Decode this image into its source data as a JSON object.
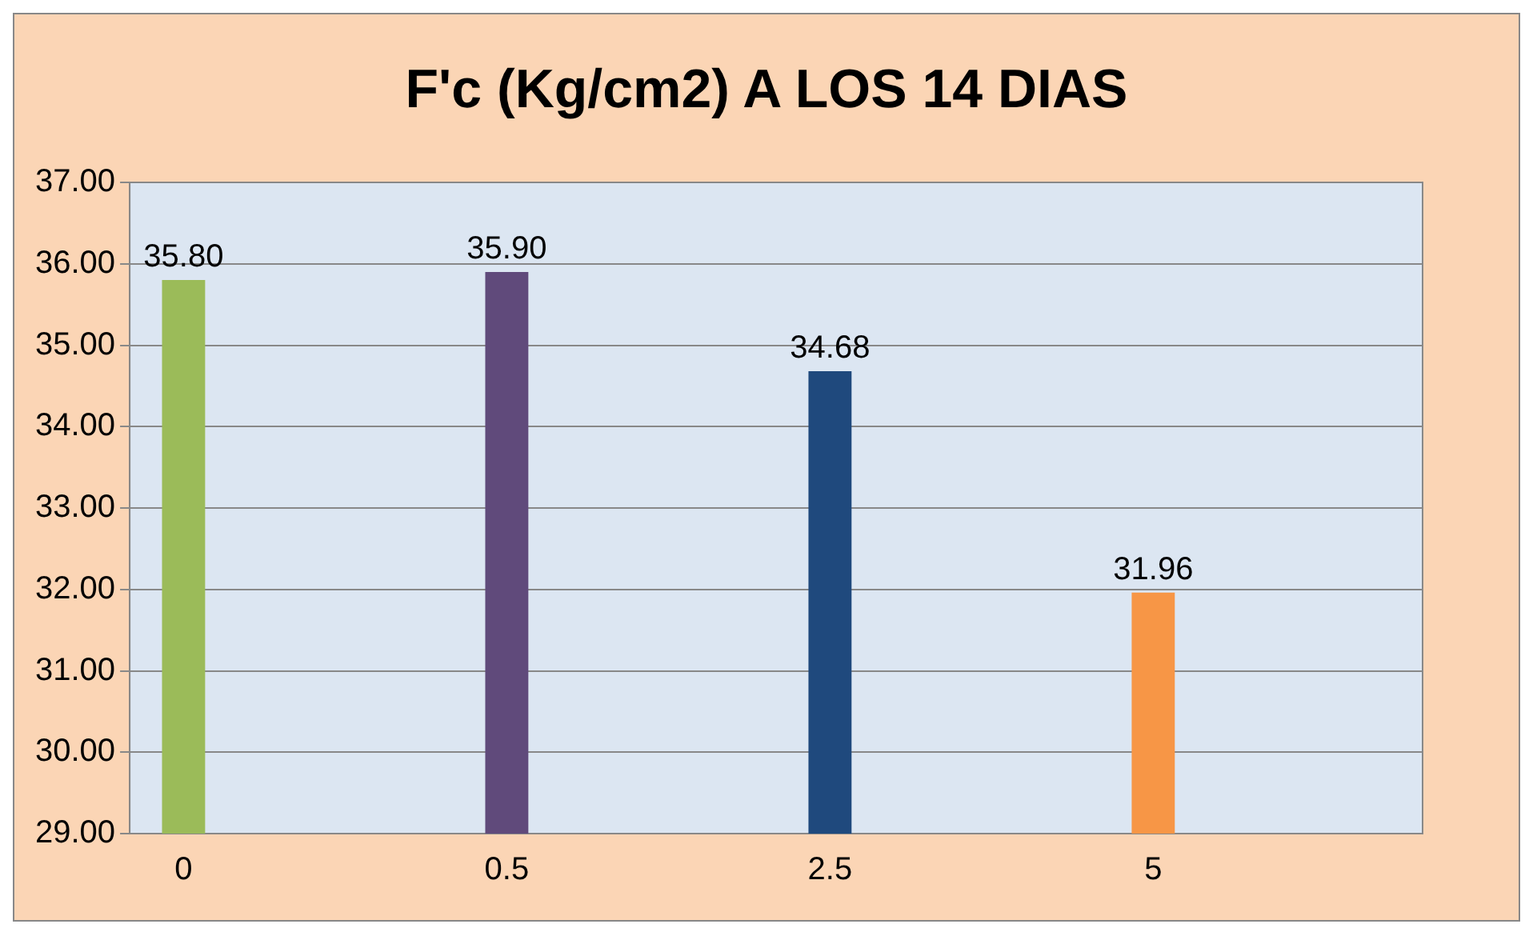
{
  "chart_data": {
    "type": "bar",
    "title": "F'c (Kg/cm2) A LOS 14 DIAS",
    "categories": [
      "0",
      null,
      null,
      "0.5",
      null,
      null,
      "2.5",
      null,
      null,
      "5",
      null,
      null
    ],
    "values": [
      35.8,
      null,
      null,
      35.9,
      null,
      null,
      34.68,
      null,
      null,
      31.96,
      null,
      null
    ],
    "colors": [
      "#9bbb59",
      null,
      null,
      "#604a7b",
      null,
      null,
      "#1f497d",
      null,
      null,
      "#f79646",
      null,
      null
    ],
    "value_labels": [
      "35.80",
      null,
      null,
      "35.90",
      null,
      null,
      "34.68",
      null,
      null,
      "31.96",
      null,
      null
    ],
    "ylim": [
      29,
      37
    ],
    "yticks": [
      {
        "value": 29,
        "label": "29.00"
      },
      {
        "value": 30,
        "label": "30.00"
      },
      {
        "value": 31,
        "label": "31.00"
      },
      {
        "value": 32,
        "label": "32.00"
      },
      {
        "value": 33,
        "label": "33.00"
      },
      {
        "value": 34,
        "label": "34.00"
      },
      {
        "value": 35,
        "label": "35.00"
      },
      {
        "value": 36,
        "label": "36.00"
      },
      {
        "value": 37,
        "label": "37.00"
      }
    ],
    "grid": "y",
    "legend": false
  }
}
